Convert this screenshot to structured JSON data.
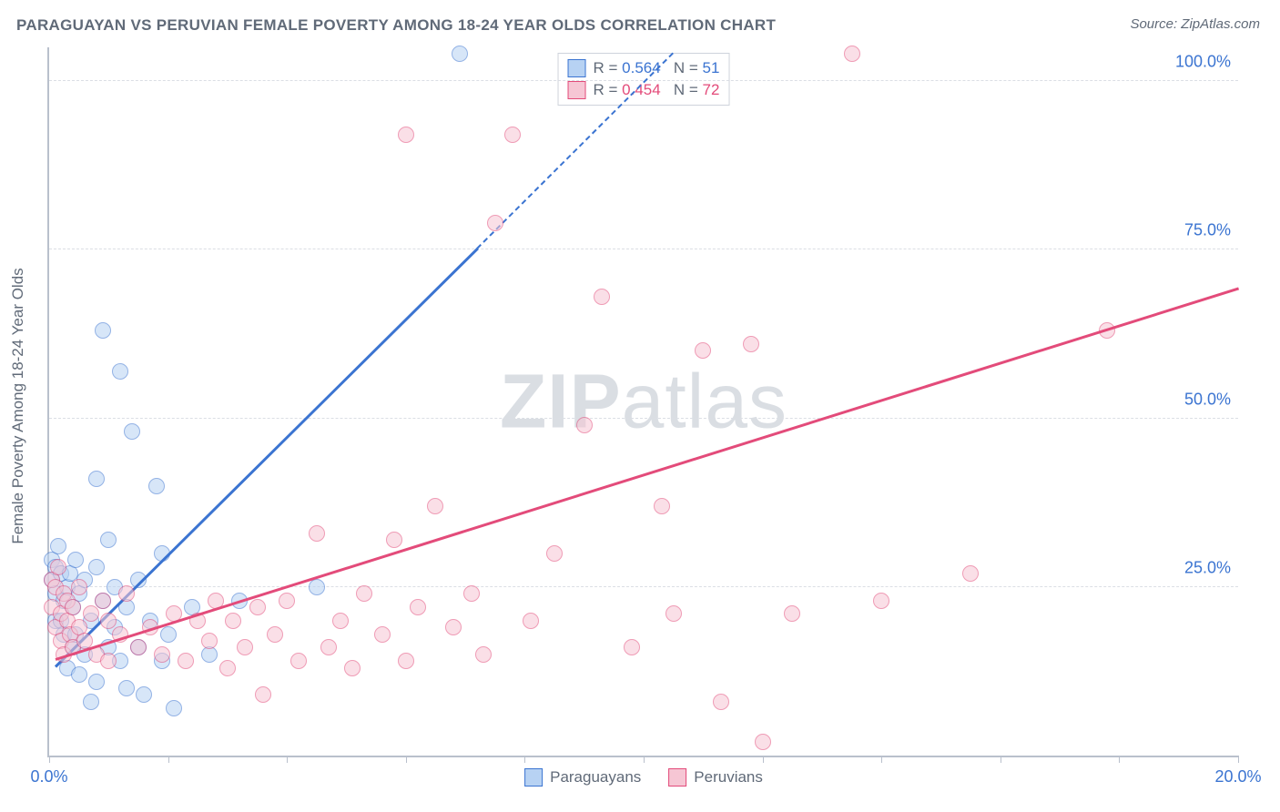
{
  "title": "PARAGUAYAN VS PERUVIAN FEMALE POVERTY AMONG 18-24 YEAR OLDS CORRELATION CHART",
  "source_label": "Source: ZipAtlas.com",
  "y_axis_label": "Female Poverty Among 18-24 Year Olds",
  "watermark": {
    "bold": "ZIP",
    "rest": "atlas"
  },
  "chart": {
    "type": "scatter",
    "background_color": "#ffffff",
    "grid_color": "#dbdee4",
    "axis_color": "#b9c0cc",
    "xlim": [
      0,
      20
    ],
    "ylim": [
      0,
      105
    ],
    "x_ticks": [
      0,
      2,
      4,
      6,
      8,
      10,
      12,
      14,
      16,
      18,
      20
    ],
    "x_tick_labels": {
      "0": "0.0%",
      "20": "20.0%"
    },
    "y_ticks": [
      25,
      50,
      75,
      100
    ],
    "y_tick_labels": [
      "25.0%",
      "50.0%",
      "75.0%",
      "100.0%"
    ],
    "marker_radius": 9,
    "marker_border_width": 1.5,
    "series": [
      {
        "name": "Paraguayans",
        "fill_color": "#b7d2f3",
        "border_color": "#3b74d1",
        "fill_opacity": 0.55,
        "stats": {
          "R": "0.564",
          "N": "51"
        },
        "points": [
          [
            0.05,
            29
          ],
          [
            0.05,
            26
          ],
          [
            0.1,
            28
          ],
          [
            0.1,
            24
          ],
          [
            0.1,
            20
          ],
          [
            0.15,
            31
          ],
          [
            0.2,
            27
          ],
          [
            0.2,
            20
          ],
          [
            0.25,
            23
          ],
          [
            0.25,
            18
          ],
          [
            0.3,
            25
          ],
          [
            0.3,
            13
          ],
          [
            0.35,
            27
          ],
          [
            0.4,
            22
          ],
          [
            0.4,
            16
          ],
          [
            0.45,
            29
          ],
          [
            0.45,
            18
          ],
          [
            0.5,
            24
          ],
          [
            0.5,
            12
          ],
          [
            0.6,
            26
          ],
          [
            0.6,
            15
          ],
          [
            0.7,
            20
          ],
          [
            0.7,
            8
          ],
          [
            0.8,
            28
          ],
          [
            0.8,
            11
          ],
          [
            0.8,
            41
          ],
          [
            0.9,
            63
          ],
          [
            0.9,
            23
          ],
          [
            1.0,
            16
          ],
          [
            1.0,
            32
          ],
          [
            1.1,
            19
          ],
          [
            1.1,
            25
          ],
          [
            1.2,
            14
          ],
          [
            1.2,
            57
          ],
          [
            1.3,
            22
          ],
          [
            1.3,
            10
          ],
          [
            1.4,
            48
          ],
          [
            1.5,
            16
          ],
          [
            1.5,
            26
          ],
          [
            1.6,
            9
          ],
          [
            1.7,
            20
          ],
          [
            1.8,
            40
          ],
          [
            1.9,
            14
          ],
          [
            1.9,
            30
          ],
          [
            2.0,
            18
          ],
          [
            2.1,
            7
          ],
          [
            2.4,
            22
          ],
          [
            2.7,
            15
          ],
          [
            3.2,
            23
          ],
          [
            4.5,
            25
          ],
          [
            6.9,
            104
          ]
        ],
        "trend": {
          "solid": {
            "x1": 0.1,
            "y1": 13,
            "x2": 7.2,
            "y2": 75
          },
          "dash": {
            "x1": 7.2,
            "y1": 75,
            "x2": 10.5,
            "y2": 104
          },
          "color": "#3b74d1",
          "width": 3
        }
      },
      {
        "name": "Peruvians",
        "fill_color": "#f6c6d4",
        "border_color": "#e34b7a",
        "fill_opacity": 0.55,
        "stats": {
          "R": "0.454",
          "N": "72"
        },
        "points": [
          [
            0.05,
            26
          ],
          [
            0.05,
            22
          ],
          [
            0.1,
            25
          ],
          [
            0.1,
            19
          ],
          [
            0.15,
            28
          ],
          [
            0.2,
            21
          ],
          [
            0.2,
            17
          ],
          [
            0.25,
            24
          ],
          [
            0.25,
            15
          ],
          [
            0.3,
            20
          ],
          [
            0.3,
            23
          ],
          [
            0.35,
            18
          ],
          [
            0.4,
            22
          ],
          [
            0.4,
            16
          ],
          [
            0.5,
            19
          ],
          [
            0.5,
            25
          ],
          [
            0.6,
            17
          ],
          [
            0.7,
            21
          ],
          [
            0.8,
            15
          ],
          [
            0.9,
            23
          ],
          [
            1.0,
            14
          ],
          [
            1.0,
            20
          ],
          [
            1.2,
            18
          ],
          [
            1.3,
            24
          ],
          [
            1.5,
            16
          ],
          [
            1.7,
            19
          ],
          [
            1.9,
            15
          ],
          [
            2.1,
            21
          ],
          [
            2.3,
            14
          ],
          [
            2.5,
            20
          ],
          [
            2.7,
            17
          ],
          [
            2.8,
            23
          ],
          [
            3.0,
            13
          ],
          [
            3.1,
            20
          ],
          [
            3.3,
            16
          ],
          [
            3.5,
            22
          ],
          [
            3.6,
            9
          ],
          [
            3.8,
            18
          ],
          [
            4.0,
            23
          ],
          [
            4.2,
            14
          ],
          [
            4.5,
            33
          ],
          [
            4.7,
            16
          ],
          [
            4.9,
            20
          ],
          [
            5.1,
            13
          ],
          [
            5.3,
            24
          ],
          [
            5.6,
            18
          ],
          [
            5.8,
            32
          ],
          [
            6.0,
            14
          ],
          [
            6.0,
            92
          ],
          [
            6.2,
            22
          ],
          [
            6.5,
            37
          ],
          [
            6.8,
            19
          ],
          [
            7.1,
            24
          ],
          [
            7.3,
            15
          ],
          [
            7.5,
            79
          ],
          [
            7.8,
            92
          ],
          [
            8.1,
            20
          ],
          [
            8.5,
            30
          ],
          [
            9.0,
            49
          ],
          [
            9.3,
            68
          ],
          [
            9.8,
            16
          ],
          [
            10.3,
            37
          ],
          [
            10.5,
            21
          ],
          [
            11.0,
            60
          ],
          [
            11.3,
            8
          ],
          [
            11.8,
            61
          ],
          [
            12.5,
            21
          ],
          [
            13.5,
            104
          ],
          [
            15.5,
            27
          ],
          [
            14.0,
            23
          ],
          [
            17.8,
            63
          ],
          [
            12.0,
            2
          ]
        ],
        "trend": {
          "solid": {
            "x1": 0.1,
            "y1": 14,
            "x2": 20,
            "y2": 69
          },
          "color": "#e34b7a",
          "width": 3
        }
      }
    ],
    "legend_series": [
      {
        "label": "Paraguayans",
        "fill": "#b7d2f3",
        "border": "#3b74d1"
      },
      {
        "label": "Peruvians",
        "fill": "#f6c6d4",
        "border": "#e34b7a"
      }
    ]
  }
}
